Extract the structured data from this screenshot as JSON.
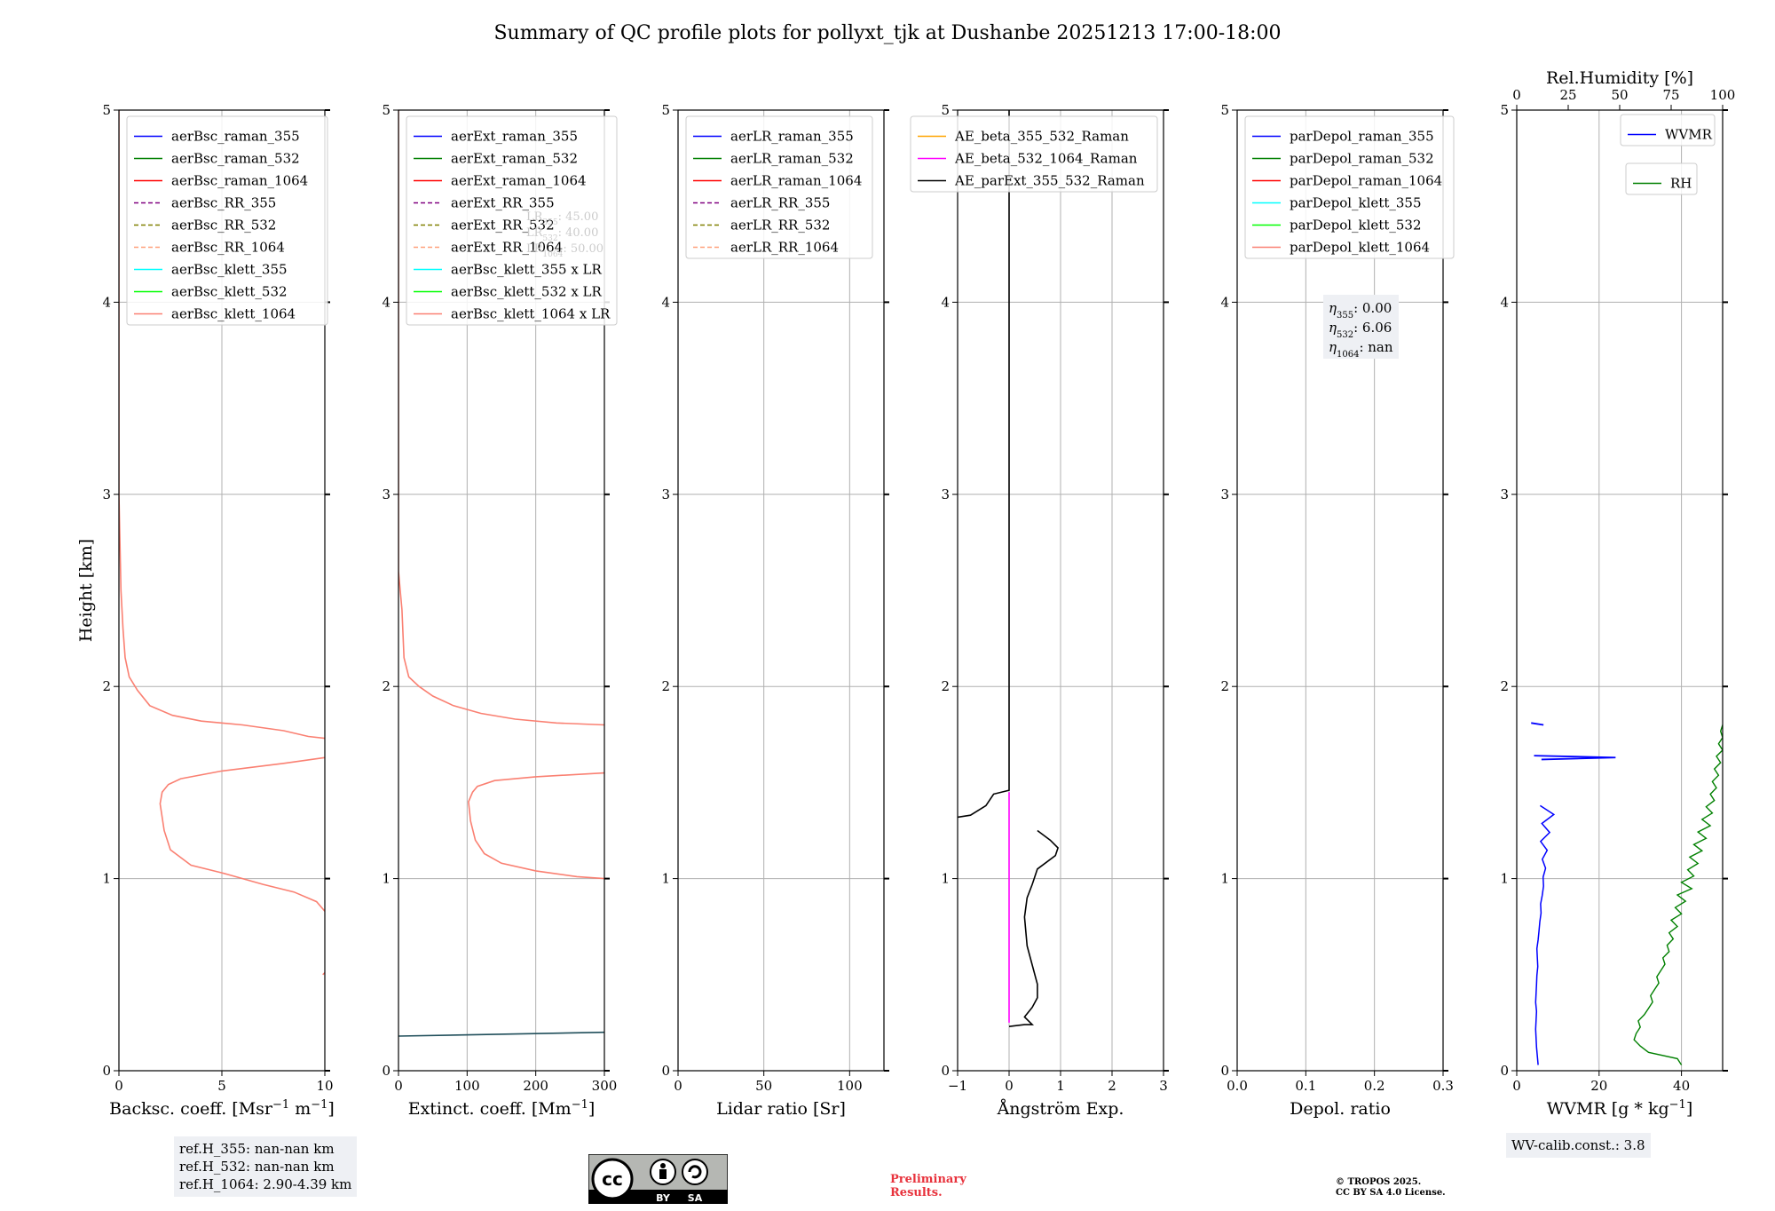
{
  "title": "Summary of QC profile plots for pollyxt_tjk at Dushanbe 20251213 17:00-18:00",
  "colors": {
    "blue": "#0000ff",
    "green": "#008000",
    "red": "#ff0000",
    "purple": "#800080",
    "olive": "#808000",
    "lightsalmon": "#ffa07a",
    "cyan": "#00ffff",
    "lime": "#00ff00",
    "salmon": "#fa8072",
    "orange": "#ffa500",
    "magenta": "#ff00ff",
    "black": "#000000",
    "dark_teal": "#1f4e5a"
  },
  "chart_data": [
    {
      "type": "line",
      "name": "backscatter",
      "xlabel_main": "Backsc. coeff. [Msr",
      "xlabel_sup1": "−1",
      "xlabel_mid": " m",
      "xlabel_sup2": "−1",
      "xlabel_end": "]",
      "ylabel": "Height [km]",
      "xlim": [
        0,
        10
      ],
      "ylim": [
        0,
        5
      ],
      "xticks": [
        0,
        5,
        10
      ],
      "xtick_labels": [
        "0",
        "5",
        "10"
      ],
      "yticks": [
        0,
        1,
        2,
        3,
        4,
        5
      ],
      "ytick_labels": [
        "0",
        "1",
        "2",
        "3",
        "4",
        "5"
      ],
      "legend": [
        {
          "label": "aerBsc_raman_355",
          "color": "blue",
          "dash": false
        },
        {
          "label": "aerBsc_raman_532",
          "color": "green",
          "dash": false
        },
        {
          "label": "aerBsc_raman_1064",
          "color": "red",
          "dash": false
        },
        {
          "label": "aerBsc_RR_355",
          "color": "purple",
          "dash": true
        },
        {
          "label": "aerBsc_RR_532",
          "color": "olive",
          "dash": true
        },
        {
          "label": "aerBsc_RR_1064",
          "color": "lightsalmon",
          "dash": true
        },
        {
          "label": "aerBsc_klett_355",
          "color": "cyan",
          "dash": false
        },
        {
          "label": "aerBsc_klett_532",
          "color": "lime",
          "dash": false
        },
        {
          "label": "aerBsc_klett_1064",
          "color": "salmon",
          "dash": false
        }
      ],
      "series": [
        {
          "name": "aerBsc_klett_1064",
          "color": "salmon",
          "points": [
            [
              0,
              5
            ],
            [
              0,
              3
            ],
            [
              0.1,
              2.5
            ],
            [
              0.2,
              2.3
            ],
            [
              0.3,
              2.15
            ],
            [
              0.5,
              2.05
            ],
            [
              0.9,
              1.98
            ],
            [
              1.5,
              1.9
            ],
            [
              2.6,
              1.85
            ],
            [
              4,
              1.82
            ],
            [
              6,
              1.8
            ],
            [
              8,
              1.77
            ],
            [
              9.2,
              1.74
            ],
            [
              10,
              1.73
            ]
          ]
        },
        {
          "name": "aerBsc_klett_1064_lower",
          "color": "salmon",
          "points": [
            [
              10,
              1.63
            ],
            [
              8,
              1.6
            ],
            [
              5,
              1.56
            ],
            [
              3,
              1.52
            ],
            [
              2.4,
              1.49
            ],
            [
              2.1,
              1.45
            ],
            [
              2,
              1.39
            ],
            [
              2.2,
              1.25
            ],
            [
              2.5,
              1.15
            ],
            [
              3.5,
              1.07
            ],
            [
              5,
              1.03
            ],
            [
              7,
              0.97
            ],
            [
              8.5,
              0.93
            ],
            [
              9.6,
              0.88
            ],
            [
              10,
              0.83
            ]
          ]
        },
        {
          "name": "aerBsc_klett_1064_tail",
          "color": "salmon",
          "points": [
            [
              9.9,
              0.5
            ],
            [
              10,
              0.51
            ]
          ]
        }
      ]
    },
    {
      "type": "line",
      "name": "extinction",
      "xlabel_main": "Extinct. coeff. [Mm",
      "xlabel_sup1": "−1",
      "xlabel_end": "]",
      "xlim": [
        0,
        300
      ],
      "ylim": [
        0,
        5
      ],
      "xticks": [
        0,
        100,
        200,
        300
      ],
      "xtick_labels": [
        "0",
        "100",
        "200",
        "300"
      ],
      "yticks": [
        0,
        1,
        2,
        3,
        4,
        5
      ],
      "ytick_labels": [
        "0",
        "1",
        "2",
        "3",
        "4",
        "5"
      ],
      "legend": [
        {
          "label": "aerExt_raman_355",
          "color": "blue",
          "dash": false
        },
        {
          "label": "aerExt_raman_532",
          "color": "green",
          "dash": false
        },
        {
          "label": "aerExt_raman_1064",
          "color": "red",
          "dash": false
        },
        {
          "label": "aerExt_RR_355",
          "color": "purple",
          "dash": true
        },
        {
          "label": "aerExt_RR_532",
          "color": "olive",
          "dash": true
        },
        {
          "label": "aerExt_RR_1064",
          "color": "lightsalmon",
          "dash": true
        },
        {
          "label": "aerBsc_klett_355 x LR",
          "color": "cyan",
          "dash": false
        },
        {
          "label": "aerBsc_klett_532 x LR",
          "color": "lime",
          "dash": false
        },
        {
          "label": "aerBsc_klett_1064 x LR",
          "color": "salmon",
          "dash": false
        }
      ],
      "lr_annotation": [
        {
          "sym": "LR",
          "sub": "355",
          "value": "45.00"
        },
        {
          "sym": "LR",
          "sub": "532",
          "value": "40.00"
        },
        {
          "sym": "LR",
          "sub": "1064",
          "value": "50.00"
        }
      ],
      "series": [
        {
          "name": "aerBsc_klett_1064 x LR",
          "color": "salmon",
          "points": [
            [
              0,
              5
            ],
            [
              0,
              2.6
            ],
            [
              5,
              2.4
            ],
            [
              8,
              2.15
            ],
            [
              15,
              2.05
            ],
            [
              30,
              2.0
            ],
            [
              50,
              1.95
            ],
            [
              80,
              1.9
            ],
            [
              120,
              1.86
            ],
            [
              170,
              1.83
            ],
            [
              230,
              1.81
            ],
            [
              300,
              1.8
            ]
          ]
        },
        {
          "name": "aerBsc_klett_1064 x LR lower",
          "color": "salmon",
          "points": [
            [
              300,
              1.55
            ],
            [
              200,
              1.53
            ],
            [
              140,
              1.51
            ],
            [
              115,
              1.48
            ],
            [
              108,
              1.45
            ],
            [
              102,
              1.4
            ],
            [
              105,
              1.3
            ],
            [
              112,
              1.2
            ],
            [
              125,
              1.13
            ],
            [
              150,
              1.08
            ],
            [
              200,
              1.04
            ],
            [
              260,
              1.01
            ],
            [
              300,
              1.0
            ]
          ]
        },
        {
          "name": "aerExt_raman_532",
          "color": "dark_teal",
          "points": [
            [
              0,
              0.18
            ],
            [
              300,
              0.2
            ]
          ]
        }
      ]
    },
    {
      "type": "line",
      "name": "lidar_ratio",
      "xlabel_main": "Lidar ratio [Sr]",
      "xlim": [
        0,
        120
      ],
      "ylim": [
        0,
        5
      ],
      "xticks": [
        0,
        50,
        100
      ],
      "xtick_labels": [
        "0",
        "50",
        "100"
      ],
      "yticks": [
        0,
        1,
        2,
        3,
        4,
        5
      ],
      "ytick_labels": [
        "0",
        "1",
        "2",
        "3",
        "4",
        "5"
      ],
      "legend": [
        {
          "label": "aerLR_raman_355",
          "color": "blue",
          "dash": false
        },
        {
          "label": "aerLR_raman_532",
          "color": "green",
          "dash": false
        },
        {
          "label": "aerLR_raman_1064",
          "color": "red",
          "dash": false
        },
        {
          "label": "aerLR_RR_355",
          "color": "purple",
          "dash": true
        },
        {
          "label": "aerLR_RR_532",
          "color": "olive",
          "dash": true
        },
        {
          "label": "aerLR_RR_1064",
          "color": "lightsalmon",
          "dash": true
        }
      ],
      "series": []
    },
    {
      "type": "line",
      "name": "angstrom",
      "xlabel_main": "Ångström Exp.",
      "xlim": [
        -1,
        3
      ],
      "ylim": [
        0,
        5
      ],
      "xticks": [
        -1,
        0,
        1,
        2,
        3
      ],
      "xtick_labels": [
        "−1",
        "0",
        "1",
        "2",
        "3"
      ],
      "yticks": [
        0,
        1,
        2,
        3,
        4,
        5
      ],
      "ytick_labels": [
        "0",
        "1",
        "2",
        "3",
        "4",
        "5"
      ],
      "legend": [
        {
          "label": "AE_beta_355_532_Raman",
          "color": "orange",
          "dash": false
        },
        {
          "label": "AE_beta_532_1064_Raman",
          "color": "magenta",
          "dash": false
        },
        {
          "label": "AE_parExt_355_532_Raman",
          "color": "black",
          "dash": false
        }
      ],
      "series": [
        {
          "name": "AE_parExt_355_532_Raman",
          "color": "black",
          "points": [
            [
              0,
              5
            ],
            [
              0,
              1.46
            ],
            [
              -0.3,
              1.44
            ],
            [
              -0.45,
              1.38
            ],
            [
              -0.75,
              1.33
            ],
            [
              -1,
              1.32
            ]
          ]
        },
        {
          "name": "AE_parExt_355_532_Raman lower",
          "color": "black",
          "points": [
            [
              0.55,
              1.25
            ],
            [
              0.8,
              1.2
            ],
            [
              0.95,
              1.16
            ],
            [
              0.9,
              1.12
            ],
            [
              0.55,
              1.05
            ],
            [
              0.45,
              0.97
            ],
            [
              0.35,
              0.9
            ],
            [
              0.3,
              0.8
            ],
            [
              0.35,
              0.65
            ],
            [
              0.45,
              0.55
            ],
            [
              0.55,
              0.45
            ],
            [
              0.55,
              0.38
            ],
            [
              0.45,
              0.33
            ],
            [
              0.3,
              0.28
            ],
            [
              0.45,
              0.24
            ],
            [
              0.3,
              0.24
            ],
            [
              0,
              0.23
            ]
          ]
        },
        {
          "name": "AE_beta_532_1064_Raman",
          "color": "magenta",
          "points": [
            [
              0,
              1.45
            ],
            [
              0,
              0.25
            ]
          ]
        }
      ]
    },
    {
      "type": "line",
      "name": "depolarization",
      "xlabel_main": "Depol. ratio",
      "xlim": [
        0,
        0.3
      ],
      "ylim": [
        0,
        5
      ],
      "xticks": [
        0,
        0.1,
        0.2,
        0.3
      ],
      "xtick_labels": [
        "0.0",
        "0.1",
        "0.2",
        "0.3"
      ],
      "yticks": [
        0,
        1,
        2,
        3,
        4,
        5
      ],
      "ytick_labels": [
        "0",
        "1",
        "2",
        "3",
        "4",
        "5"
      ],
      "legend": [
        {
          "label": "parDepol_raman_355",
          "color": "blue",
          "dash": false
        },
        {
          "label": "parDepol_raman_532",
          "color": "green",
          "dash": false
        },
        {
          "label": "parDepol_raman_1064",
          "color": "red",
          "dash": false
        },
        {
          "label": "parDepol_klett_355",
          "color": "cyan",
          "dash": false
        },
        {
          "label": "parDepol_klett_532",
          "color": "lime",
          "dash": false
        },
        {
          "label": "parDepol_klett_1064",
          "color": "salmon",
          "dash": false
        }
      ],
      "eta": [
        {
          "sub": "355",
          "value": "0.00"
        },
        {
          "sub": "532",
          "value": "6.06"
        },
        {
          "sub": "1064",
          "value": "nan"
        }
      ],
      "series": []
    },
    {
      "type": "line",
      "name": "water_vapor",
      "xlabel_main": "WVMR [g * kg",
      "xlabel_sup1": "−1",
      "xlabel_end": "]",
      "top_xlabel": "Rel.Humidity [%]",
      "xlim": [
        0,
        50
      ],
      "ylim": [
        0,
        5
      ],
      "xticks": [
        0,
        20,
        40
      ],
      "xtick_labels": [
        "0",
        "20",
        "40"
      ],
      "top_xlim": [
        0,
        100
      ],
      "top_xticks": [
        0,
        25,
        50,
        75,
        100
      ],
      "top_xtick_labels": [
        "0",
        "25",
        "50",
        "75",
        "100"
      ],
      "yticks": [
        0,
        1,
        2,
        3,
        4,
        5
      ],
      "ytick_labels": [
        "0",
        "1",
        "2",
        "3",
        "4",
        "5"
      ],
      "legend_wvmr": {
        "label": "WVMR",
        "color": "blue"
      },
      "legend_rh": {
        "label": "RH",
        "color": "green"
      },
      "wvmr": {
        "color": "blue",
        "y_start": 0.03,
        "y_end": 1.38,
        "x_low": [
          5.2,
          5.0,
          4.8,
          4.7,
          4.6,
          4.7,
          4.8,
          4.6,
          4.7,
          4.8,
          4.9,
          5.1,
          5.0,
          4.9,
          5.2,
          5.4,
          5.6,
          5.9,
          5.8,
          6.2,
          6.5,
          6.4,
          7.0,
          6.2,
          7.4,
          5.8,
          8.0,
          6.1,
          9.0,
          5.7
        ]
      },
      "rh": {
        "color": "green",
        "y_start": 0.03,
        "y_end": 1.8,
        "x_low": [
          80,
          78,
          64,
          60,
          57,
          58,
          60,
          59,
          62,
          64,
          66,
          65,
          67,
          69,
          68,
          70,
          72,
          71,
          74,
          73,
          76,
          74,
          78,
          75,
          80,
          77,
          82,
          78,
          85,
          80,
          86,
          83,
          88,
          84,
          90,
          86,
          92,
          88,
          94,
          90,
          95,
          92,
          96,
          94,
          97,
          95,
          98,
          96,
          99,
          97,
          100,
          98,
          100,
          99,
          100
        ]
      }
    }
  ],
  "footer": {
    "ref_h_355": "ref.H_355: nan-nan km",
    "ref_h_532": "ref.H_532: nan-nan km",
    "ref_h_1064": "ref.H_1064: 2.90-4.39 km",
    "wv_calib": "WV-calib.const.: 3.8",
    "preliminary": "Preliminary\nResults.",
    "copyright": "© TROPOS 2025.\nCC BY SA 4.0 License.",
    "license_by": "BY",
    "license_sa": "SA",
    "license_cc": "cc"
  }
}
